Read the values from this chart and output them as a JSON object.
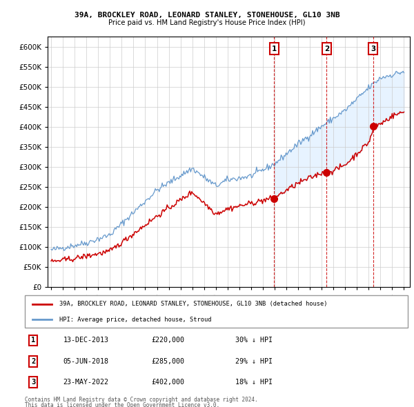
{
  "title1": "39A, BROCKLEY ROAD, LEONARD STANLEY, STONEHOUSE, GL10 3NB",
  "title2": "Price paid vs. HM Land Registry's House Price Index (HPI)",
  "ytick_values": [
    0,
    50000,
    100000,
    150000,
    200000,
    250000,
    300000,
    350000,
    400000,
    450000,
    500000,
    550000,
    600000
  ],
  "sale_prices": [
    220000,
    285000,
    402000
  ],
  "sale_labels": [
    "1",
    "2",
    "3"
  ],
  "legend_red": "39A, BROCKLEY ROAD, LEONARD STANLEY, STONEHOUSE, GL10 3NB (detached house)",
  "legend_blue": "HPI: Average price, detached house, Stroud",
  "footer1": "Contains HM Land Registry data © Crown copyright and database right 2024.",
  "footer2": "This data is licensed under the Open Government Licence v3.0.",
  "table_rows": [
    [
      "1",
      "13-DEC-2013",
      "£220,000",
      "30% ↓ HPI"
    ],
    [
      "2",
      "05-JUN-2018",
      "£285,000",
      "29% ↓ HPI"
    ],
    [
      "3",
      "23-MAY-2022",
      "£402,000",
      "18% ↓ HPI"
    ]
  ],
  "red_color": "#cc0000",
  "blue_color": "#6699cc",
  "fill_color": "#ddeeff",
  "background_color": "#ffffff",
  "grid_color": "#cccccc"
}
